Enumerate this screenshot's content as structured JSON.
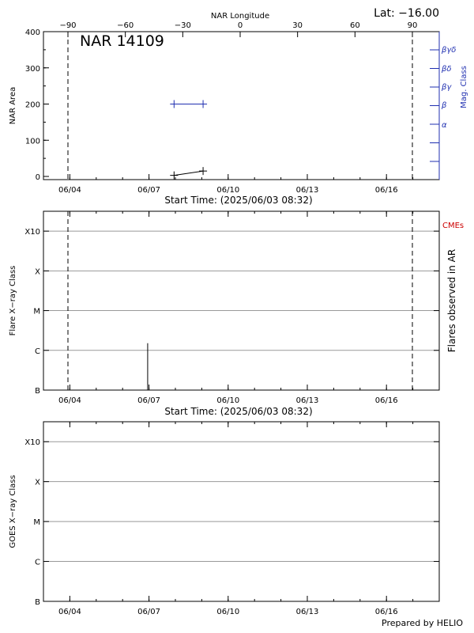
{
  "header": {
    "lat_text": "Lat: −16.00",
    "footer": "Prepared by HELIO"
  },
  "chart_data": [
    {
      "type": "line",
      "panel": "nar-area",
      "title": "NAR 14109",
      "top_axis_label": "NAR Longitude",
      "top_ticks": [
        -90,
        -60,
        -30,
        0,
        30,
        60,
        90
      ],
      "top_tick_labels": [
        "−90",
        "−60",
        "−30",
        "0",
        "30",
        "60",
        "90"
      ],
      "xlabel": "Start Time: (2025/06/03 08:32)",
      "ylabel": "NAR Area",
      "right_label": "Mag. Class",
      "x_tick_labels": [
        "06/04",
        "06/07",
        "06/10",
        "06/13",
        "06/16"
      ],
      "x_tick_days": [
        1,
        4,
        7,
        10,
        13
      ],
      "xlim_days": [
        0,
        15
      ],
      "ylim": [
        0,
        400
      ],
      "y_ticks": [
        0,
        100,
        200,
        300,
        400
      ],
      "mag_classes": [
        "α",
        "β",
        "βγ",
        "βδ",
        "βγδ"
      ],
      "limb_lines_longitude": [
        -90,
        90
      ],
      "series": [
        {
          "color": "#000000",
          "days": [
            4.95,
            6.05
          ],
          "values": [
            3,
            15
          ]
        },
        {
          "color": "#1f2fb0",
          "days": [
            4.95,
            6.05
          ],
          "values": [
            200,
            200
          ]
        }
      ]
    },
    {
      "type": "bar",
      "panel": "flares",
      "xlabel": "Start Time: (2025/06/03 08:32)",
      "ylabel": "Flare X−ray Class",
      "right_label": "Flares observed in AR",
      "right_label_red": "CMEs",
      "x_tick_labels": [
        "06/04",
        "06/07",
        "06/10",
        "06/13",
        "06/16"
      ],
      "x_tick_days": [
        1,
        4,
        7,
        10,
        13
      ],
      "xlim_days": [
        0,
        15
      ],
      "y_classes": [
        "B",
        "C",
        "M",
        "X",
        "X10"
      ],
      "grid": true,
      "limb_lines_longitude": [
        -90,
        90
      ],
      "flares": [
        {
          "day": 3.95,
          "class_level": 1.18
        }
      ]
    },
    {
      "type": "line",
      "panel": "goes",
      "ylabel": "GOES X−ray Class",
      "x_tick_labels": [
        "06/04",
        "06/07",
        "06/10",
        "06/13",
        "06/16"
      ],
      "x_tick_days": [
        1,
        4,
        7,
        10,
        13
      ],
      "xlim_days": [
        0,
        15
      ],
      "y_classes": [
        "B",
        "C",
        "M",
        "X",
        "X10"
      ],
      "grid": true,
      "series": []
    }
  ]
}
